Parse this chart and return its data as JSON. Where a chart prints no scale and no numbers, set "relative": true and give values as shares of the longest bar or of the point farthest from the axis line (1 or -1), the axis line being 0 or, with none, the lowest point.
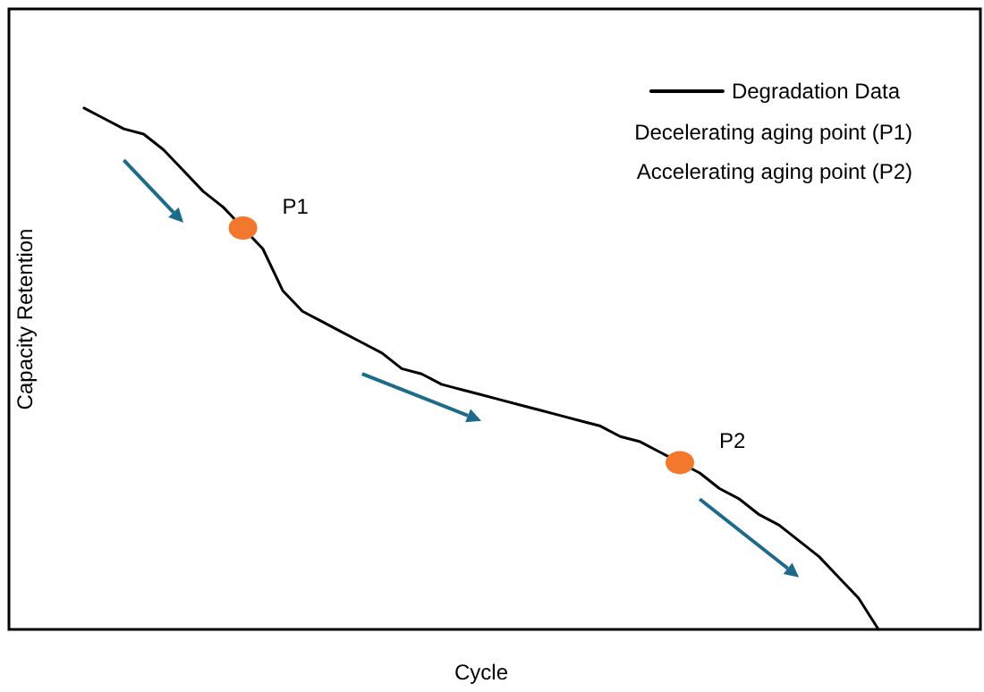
{
  "chart_data": {
    "type": "line",
    "xlabel": "Cycle",
    "ylabel": "Capacity Retention",
    "relative": true,
    "grid": false,
    "legend": "top right",
    "marker": "none",
    "categories": [
      null,
      null,
      null,
      null,
      null,
      null,
      null,
      null,
      null,
      null,
      null,
      null,
      null,
      null,
      null,
      null,
      null,
      null,
      null,
      null,
      null,
      null,
      null,
      null,
      null,
      null,
      null,
      null,
      null,
      null,
      null,
      null,
      null,
      null,
      null,
      null,
      null,
      null,
      null,
      null,
      null
    ],
    "series": [
      {
        "name": "Degradation Data",
        "color": "#000000",
        "values": [
          1.0,
          0.98,
          0.96,
          0.95,
          0.92,
          0.88,
          0.84,
          0.81,
          0.77,
          0.73,
          0.65,
          0.61,
          0.59,
          0.57,
          0.55,
          0.53,
          0.5,
          0.49,
          0.47,
          0.46,
          0.45,
          0.44,
          0.43,
          0.42,
          0.41,
          0.4,
          0.39,
          0.37,
          0.36,
          0.34,
          0.32,
          0.3,
          0.27,
          0.25,
          0.22,
          0.2,
          0.17,
          0.14,
          0.1,
          0.06,
          0
        ]
      }
    ],
    "annotations": [
      "Decelerating aging point (P1)",
      "Accelerating aging point (P2)",
      "P1",
      "P2"
    ]
  }
}
